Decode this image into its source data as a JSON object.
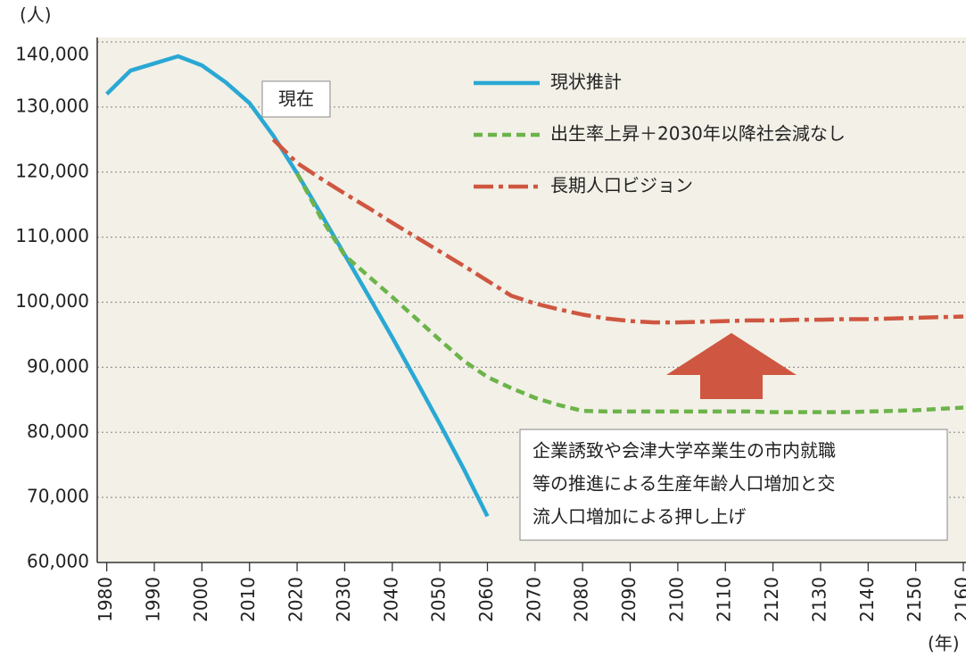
{
  "chart_data": {
    "type": "line",
    "y_unit": "(人)",
    "x_unit": "(年)",
    "x": [
      1980,
      1985,
      1990,
      1995,
      2000,
      2005,
      2010,
      2015,
      2020,
      2025,
      2030,
      2035,
      2040,
      2045,
      2050,
      2055,
      2060,
      2065,
      2070,
      2075,
      2080,
      2085,
      2090,
      2095,
      2100,
      2105,
      2110,
      2115,
      2120,
      2125,
      2130,
      2135,
      2140,
      2145,
      2150,
      2155,
      2160
    ],
    "series": [
      {
        "name": "現状推計",
        "color": "#2aa8d4",
        "dash": "none",
        "values": [
          132000,
          135600,
          136700,
          137800,
          136400,
          133800,
          130600,
          125600,
          119800,
          113600,
          107300,
          101000,
          94600,
          88000,
          81300,
          74400,
          67100,
          null,
          null,
          null,
          null,
          null,
          null,
          null,
          null,
          null,
          null,
          null,
          null,
          null,
          null,
          null,
          null,
          null,
          null,
          null,
          null
        ]
      },
      {
        "name": "出生率上昇＋2030年以降社会減なし",
        "color": "#6cb44a",
        "dash": "10 6",
        "values": [
          null,
          null,
          null,
          null,
          null,
          null,
          null,
          null,
          119800,
          113000,
          107200,
          104000,
          100800,
          97500,
          94200,
          91000,
          88500,
          86800,
          85300,
          84200,
          83300,
          83200,
          83200,
          83200,
          83200,
          83200,
          83200,
          83200,
          83100,
          83100,
          83100,
          83100,
          83200,
          83300,
          83400,
          83600,
          83800
        ]
      },
      {
        "name": "長期人口ビジョン",
        "color": "#cf5640",
        "dash": "22 6 5 6",
        "values": [
          null,
          null,
          null,
          null,
          null,
          null,
          null,
          125000,
          121400,
          119000,
          116700,
          114500,
          112200,
          110000,
          107800,
          105600,
          103300,
          101000,
          99800,
          98900,
          98100,
          97500,
          97100,
          96900,
          96900,
          97000,
          97100,
          97200,
          97200,
          97300,
          97300,
          97400,
          97400,
          97500,
          97600,
          97700,
          97800
        ]
      }
    ],
    "xlim": [
      1978,
      2160
    ],
    "xticks": [
      1980,
      1990,
      2000,
      2010,
      2020,
      2030,
      2040,
      2050,
      2060,
      2070,
      2080,
      2090,
      2100,
      2110,
      2120,
      2130,
      2140,
      2150,
      2160
    ],
    "ylim": [
      60000,
      140000
    ],
    "yticks": [
      {
        "value": 60000,
        "label": "60,000"
      },
      {
        "value": 70000,
        "label": "70,000"
      },
      {
        "value": 80000,
        "label": "80,000"
      },
      {
        "value": 90000,
        "label": "90,000"
      },
      {
        "value": 100000,
        "label": "100,000"
      },
      {
        "value": 110000,
        "label": "110,000"
      },
      {
        "value": 120000,
        "label": "120,000"
      },
      {
        "value": 130000,
        "label": "130,000"
      },
      {
        "value": 140000,
        "label": "140,000"
      }
    ],
    "grid": true,
    "annotations": [
      "現在",
      "企業誘致や会津大学卒業生の市内就職",
      "等の推進による生産年齢人口増加と交",
      "流人口増加による押し上げ"
    ]
  }
}
